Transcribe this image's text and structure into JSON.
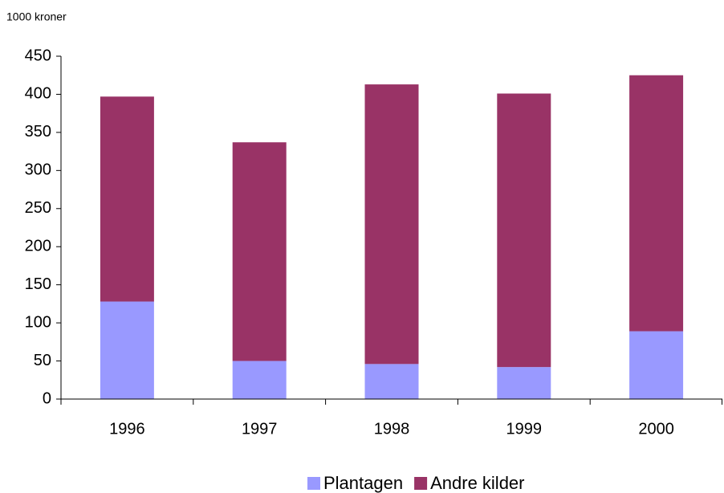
{
  "chart_data": {
    "type": "stacked-bar",
    "y_axis_label": "1000 kroner",
    "categories": [
      "1996",
      "1997",
      "1998",
      "1999",
      "2000"
    ],
    "series": [
      {
        "name": "Plantagen",
        "color": "#9999ff",
        "values": [
          128,
          50,
          46,
          42,
          89
        ]
      },
      {
        "name": "Andre kilder",
        "color": "#993366",
        "values": [
          269,
          287,
          367,
          359,
          336
        ]
      }
    ],
    "ylim": [
      0,
      450
    ],
    "yticks": [
      0,
      50,
      100,
      150,
      200,
      250,
      300,
      350,
      400,
      450
    ],
    "grid": false,
    "legend": "bottom"
  }
}
